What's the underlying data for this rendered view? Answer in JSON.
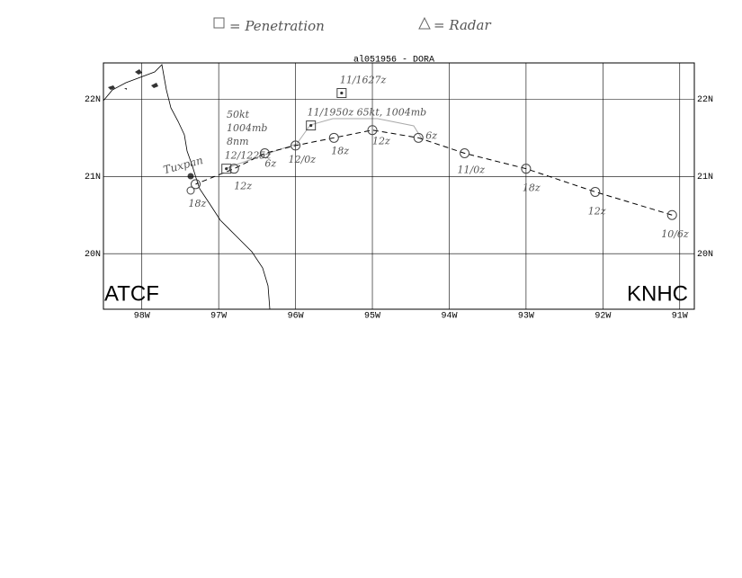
{
  "legend": {
    "penetration": "= Penetration",
    "radar": "= Radar"
  },
  "map": {
    "title": "al051956 - DORA",
    "xlim": [
      -98.5,
      -90.81
    ],
    "ylim": [
      19.28,
      22.47
    ],
    "xticks": [
      {
        "value": -98,
        "label": "98W"
      },
      {
        "value": -97,
        "label": "97W"
      },
      {
        "value": -96,
        "label": "96W"
      },
      {
        "value": -95,
        "label": "95W"
      },
      {
        "value": -94,
        "label": "94W"
      },
      {
        "value": -93,
        "label": "93W"
      },
      {
        "value": -92,
        "label": "92W"
      },
      {
        "value": -91,
        "label": "91W"
      }
    ],
    "yticks": [
      {
        "value": 20,
        "label": "20N"
      },
      {
        "value": 21,
        "label": "21N"
      },
      {
        "value": 22,
        "label": "22N"
      }
    ],
    "track": {
      "lon": [
        -91.1,
        -92.1,
        -93.0,
        -93.8,
        -94.4,
        -95.0,
        -95.5,
        -96.0,
        -96.4,
        -96.8,
        -97.3
      ],
      "lat": [
        20.5,
        20.8,
        21.1,
        21.3,
        21.5,
        21.6,
        21.5,
        21.4,
        21.3,
        21.1,
        20.9
      ],
      "labels": [
        "10/6z",
        "12z",
        "18z",
        "11/0z",
        "6z",
        "12z",
        "18z",
        "12/0z",
        "6z",
        "12z",
        "18z"
      ]
    },
    "fixes": [
      {
        "lon": -95.4,
        "lat": 22.08,
        "label": "11/1627z"
      },
      {
        "lon": -95.8,
        "lat": 21.66,
        "label": "11/1950z 65kt, 1004mb"
      },
      {
        "lon": -96.9,
        "lat": 21.1,
        "label": "12/1225z"
      }
    ],
    "notes": [
      "50kt",
      "1004mb",
      "8nm"
    ],
    "place": "Tuxpan",
    "left_label": "ATCF",
    "right_label": "KNHC"
  }
}
